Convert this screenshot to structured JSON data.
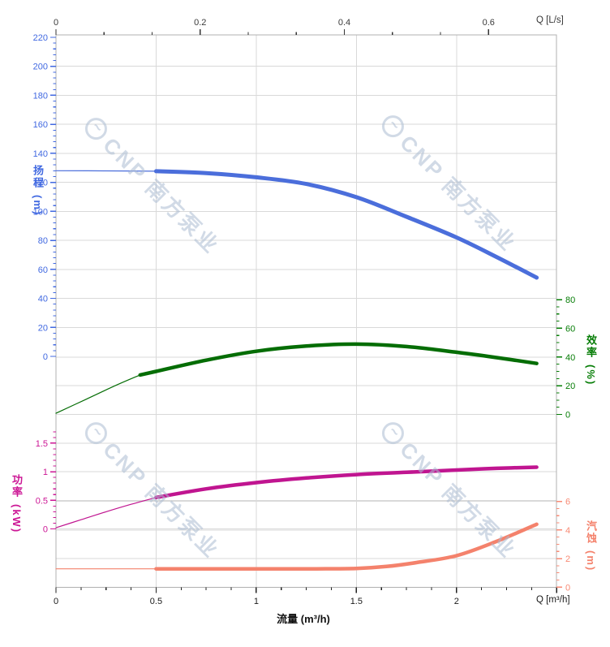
{
  "watermark": {
    "text": "CNP 南方泵业",
    "logo": "cnp-circle-wave-logo"
  },
  "colors": {
    "head_curve": "#4b6edb",
    "head_axis": "#4169e1",
    "eff_curve": "#056d05",
    "eff_axis": "#067d06",
    "power_curve": "#c01590",
    "power_axis": "#cc1695",
    "npsh_curve": "#f4826c",
    "npsh_axis": "#f88a74",
    "grid": "#d9d9d9",
    "border": "#b0b0b0",
    "top_axis_text": "#3a3a3a",
    "bottom_axis_text": "#1a1a1a"
  },
  "chart_data": {
    "type": "line",
    "x_axis": {
      "title": "流量 (m³/h)",
      "unit_label": "Q [m³/h]",
      "tick_labels": [
        "0",
        "0.5",
        "1",
        "1.5",
        "2"
      ],
      "tick_values": [
        0,
        0.5,
        1,
        1.5,
        2
      ],
      "range": [
        0,
        2.5
      ],
      "minor_step": 0.125
    },
    "x_axis_top": {
      "unit_label": "Q [L/s]",
      "tick_labels": [
        "0",
        "0.2",
        "0.4",
        "0.6"
      ],
      "tick_values": [
        0,
        0.2,
        0.4,
        0.6
      ],
      "minors_between": 2
    },
    "y_axes": {
      "head": {
        "title": "扬程",
        "unit": "(m)",
        "min": 0,
        "max": 220,
        "step": 20,
        "minor_step": 4,
        "side": "left"
      },
      "eff": {
        "title": "效率",
        "unit": "(%)",
        "min": 0,
        "max": 80,
        "step": 20,
        "minor_step": 5,
        "side": "right"
      },
      "power": {
        "title": "功率",
        "unit": "(kW)",
        "min": 0,
        "max": 1.5,
        "step": 0.5,
        "minor_step": 0.1,
        "minor_max": 1.7,
        "side": "left",
        "labels": [
          "0",
          "0.5",
          "1",
          "1.5"
        ]
      },
      "npsh": {
        "title": "汽蚀",
        "unit": "(m)",
        "min": 0,
        "max": 6,
        "step": 2,
        "minor_step": 0.5,
        "side": "right"
      }
    },
    "series": [
      {
        "name": "head",
        "label": "扬程",
        "unit": "m",
        "color": "#4b6edb",
        "thin_until": 0.5,
        "points": [
          [
            0,
            128
          ],
          [
            0.25,
            127.9
          ],
          [
            0.5,
            127.7
          ],
          [
            0.75,
            126.4
          ],
          [
            1,
            123.5
          ],
          [
            1.25,
            118.9
          ],
          [
            1.5,
            109.8
          ],
          [
            1.75,
            96.3
          ],
          [
            2,
            82
          ],
          [
            2.2,
            68.5
          ],
          [
            2.4,
            54.3
          ]
        ]
      },
      {
        "name": "efficiency",
        "label": "效率",
        "unit": "%",
        "color": "#056d05",
        "thin_until": 0.42,
        "points": [
          [
            0,
            0.8
          ],
          [
            0.15,
            10.5
          ],
          [
            0.3,
            20.3
          ],
          [
            0.42,
            27.5
          ],
          [
            0.5,
            30
          ],
          [
            0.75,
            37.8
          ],
          [
            1,
            44
          ],
          [
            1.25,
            47.6
          ],
          [
            1.5,
            49
          ],
          [
            1.75,
            47.3
          ],
          [
            2,
            43.3
          ],
          [
            2.2,
            39.6
          ],
          [
            2.4,
            35.5
          ]
        ]
      },
      {
        "name": "power",
        "label": "功率",
        "unit": "kW",
        "color": "#c01590",
        "thin_until": 0.5,
        "points": [
          [
            0,
            0.02
          ],
          [
            0.125,
            0.16
          ],
          [
            0.25,
            0.3
          ],
          [
            0.375,
            0.43
          ],
          [
            0.5,
            0.55
          ],
          [
            0.75,
            0.7
          ],
          [
            1,
            0.81
          ],
          [
            1.25,
            0.89
          ],
          [
            1.5,
            0.95
          ],
          [
            1.75,
            0.99
          ],
          [
            2,
            1.03
          ],
          [
            2.2,
            1.06
          ],
          [
            2.4,
            1.08
          ]
        ]
      },
      {
        "name": "npsh",
        "label": "汽蚀",
        "unit": "m",
        "color": "#f4826c",
        "thin_until": 0.5,
        "points": [
          [
            0,
            1.28
          ],
          [
            0.5,
            1.28
          ],
          [
            1,
            1.28
          ],
          [
            1.3,
            1.28
          ],
          [
            1.5,
            1.31
          ],
          [
            1.65,
            1.45
          ],
          [
            1.8,
            1.72
          ],
          [
            2,
            2.2
          ],
          [
            2.2,
            3.2
          ],
          [
            2.4,
            4.4
          ]
        ]
      }
    ]
  }
}
